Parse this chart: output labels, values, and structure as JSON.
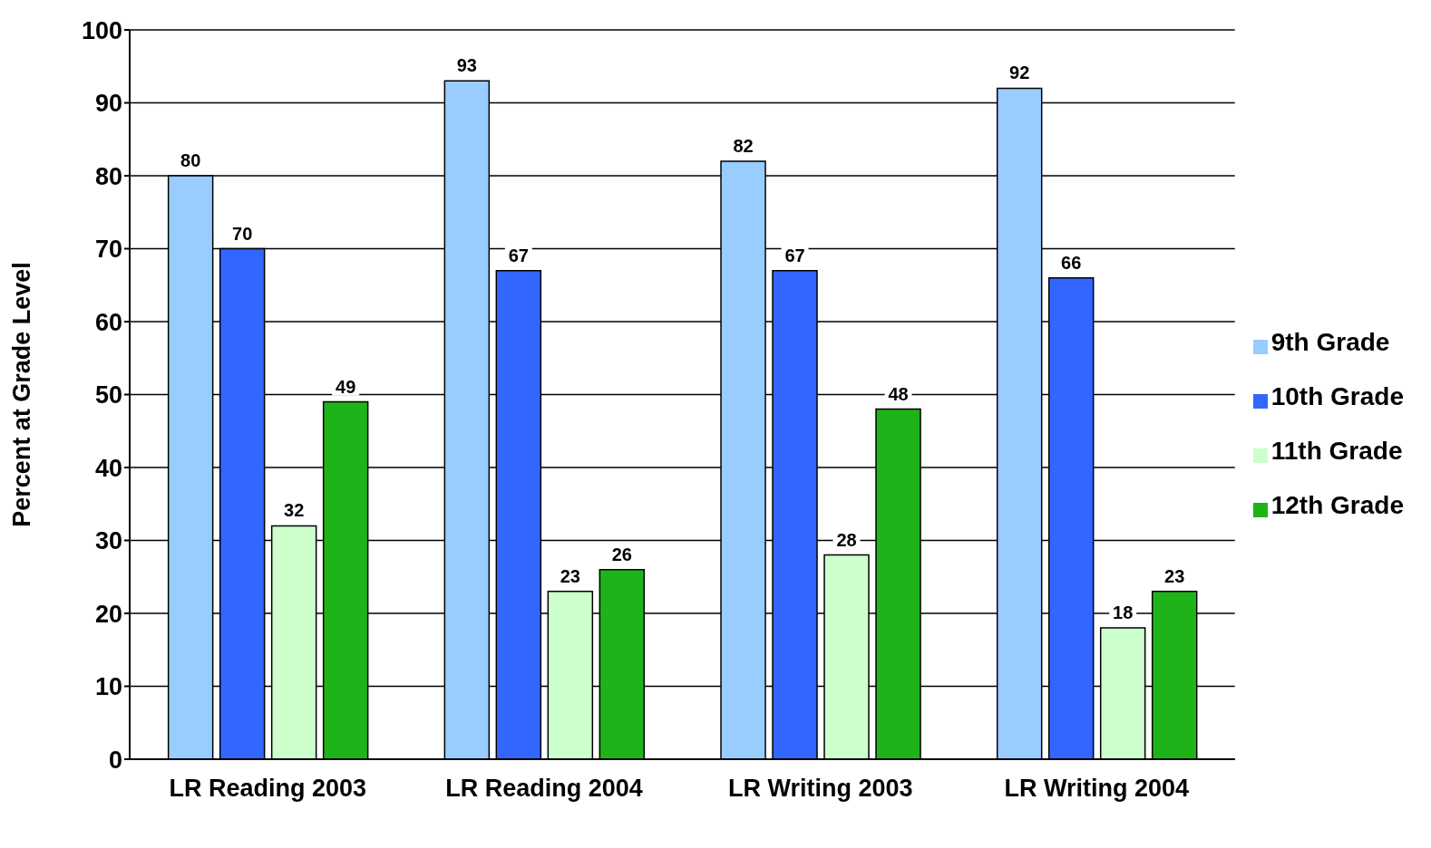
{
  "chart_data": {
    "type": "bar",
    "ylabel": "Percent at Grade Level",
    "categories": [
      "LR Reading 2003",
      "LR Reading 2004",
      "LR Writing 2003",
      "LR Writing 2004"
    ],
    "series": [
      {
        "name": "9th Grade",
        "color": "#99ccff",
        "values": [
          80,
          93,
          82,
          92
        ]
      },
      {
        "name": "10th Grade",
        "color": "#3366ff",
        "values": [
          70,
          67,
          67,
          66
        ]
      },
      {
        "name": "11th Grade",
        "color": "#ccffcc",
        "values": [
          32,
          23,
          28,
          18
        ]
      },
      {
        "name": "12th Grade",
        "color": "#1fb31a",
        "values": [
          49,
          26,
          48,
          23
        ]
      }
    ],
    "ylim": [
      0,
      100
    ],
    "yticks": [
      0,
      10,
      20,
      30,
      40,
      50,
      60,
      70,
      80,
      90,
      100
    ],
    "grid": "y",
    "legend": "right",
    "data_labels": true
  }
}
